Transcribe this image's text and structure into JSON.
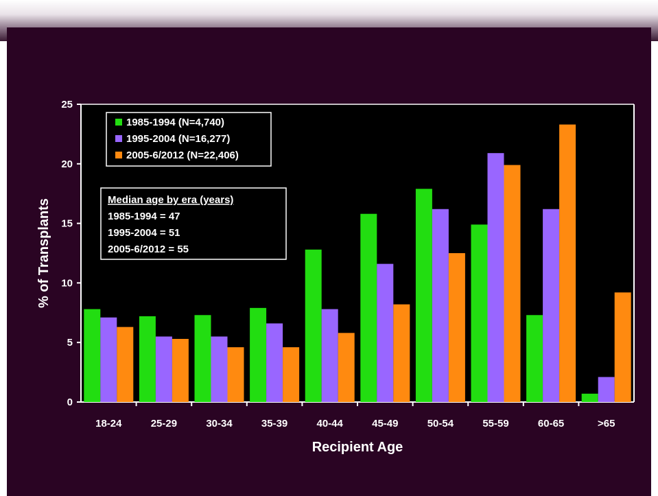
{
  "chart_data": {
    "type": "bar",
    "xlabel": "Recipient Age",
    "ylabel": "% of Transplants",
    "ylim": [
      0,
      25
    ],
    "yticks": [
      "0",
      "5",
      "10",
      "15",
      "20",
      "25"
    ],
    "grid": false,
    "categories": [
      "18-24",
      "25-29",
      "30-34",
      "35-39",
      "40-44",
      "45-49",
      "50-54",
      "55-59",
      "60-65",
      ">65"
    ],
    "series": [
      {
        "name": "1985-1994 (N=4,740)",
        "color": "#22dd11",
        "values": [
          7.8,
          7.2,
          7.3,
          7.9,
          12.8,
          15.8,
          17.9,
          14.9,
          7.3,
          0.7
        ]
      },
      {
        "name": "1995-2004 (N=16,277)",
        "color": "#9966ff",
        "values": [
          7.1,
          5.5,
          5.5,
          6.6,
          7.8,
          11.6,
          16.2,
          20.9,
          16.2,
          2.1
        ]
      },
      {
        "name": "2005-6/2012 (N=22,406)",
        "color": "#ff8a10",
        "values": [
          6.3,
          5.3,
          4.6,
          4.6,
          5.8,
          8.2,
          12.5,
          19.9,
          23.3,
          9.2
        ]
      }
    ],
    "legend_position": "top-left",
    "annotation": {
      "title": "Median age by era (years)",
      "lines": [
        "1985-1994 = 47",
        "1995-2004 = 51",
        "2005-6/2012 = 55"
      ]
    }
  }
}
